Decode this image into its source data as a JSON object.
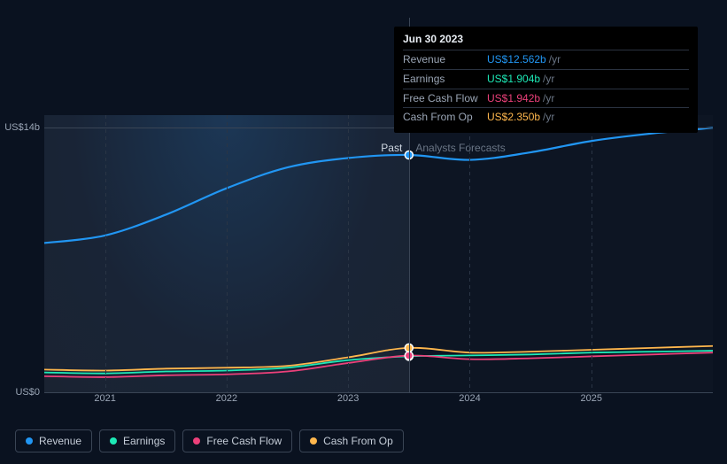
{
  "chart": {
    "type": "line",
    "background_past": "#1a2332",
    "background_forecast": "#0d1523",
    "grid_color": "#3a4555",
    "text_color": "#9aa5b5",
    "past_label": "Past",
    "forecast_label": "Analysts Forecasts",
    "y_axis": {
      "ticks": [
        {
          "value": 0,
          "label": "US$0"
        },
        {
          "value": 14,
          "label": "US$14b"
        }
      ],
      "ymin": 0,
      "ymax": 14.67
    },
    "x_axis": {
      "xmin": 2020.5,
      "xmax": 2026.0,
      "ticks": [
        2021,
        2022,
        2023,
        2024,
        2025
      ],
      "split_at": 2023.5
    },
    "series": [
      {
        "name": "Revenue",
        "legend": "Revenue",
        "color": "#2196f3",
        "points": [
          {
            "x": 2020.5,
            "y": 7.9
          },
          {
            "x": 2021.0,
            "y": 8.3
          },
          {
            "x": 2021.5,
            "y": 9.4
          },
          {
            "x": 2022.0,
            "y": 10.8
          },
          {
            "x": 2022.5,
            "y": 11.9
          },
          {
            "x": 2023.0,
            "y": 12.4
          },
          {
            "x": 2023.5,
            "y": 12.562
          },
          {
            "x": 2024.0,
            "y": 12.3
          },
          {
            "x": 2024.5,
            "y": 12.7
          },
          {
            "x": 2025.0,
            "y": 13.3
          },
          {
            "x": 2025.5,
            "y": 13.7
          },
          {
            "x": 2026.0,
            "y": 14.0
          }
        ]
      },
      {
        "name": "Earnings",
        "legend": "Earnings",
        "color": "#1de9b6",
        "points": [
          {
            "x": 2020.5,
            "y": 1.05
          },
          {
            "x": 2021.0,
            "y": 1.0
          },
          {
            "x": 2021.5,
            "y": 1.1
          },
          {
            "x": 2022.0,
            "y": 1.15
          },
          {
            "x": 2022.5,
            "y": 1.3
          },
          {
            "x": 2023.0,
            "y": 1.7
          },
          {
            "x": 2023.5,
            "y": 1.904
          },
          {
            "x": 2024.0,
            "y": 1.95
          },
          {
            "x": 2024.5,
            "y": 2.0
          },
          {
            "x": 2025.0,
            "y": 2.1
          },
          {
            "x": 2025.5,
            "y": 2.15
          },
          {
            "x": 2026.0,
            "y": 2.2
          }
        ]
      },
      {
        "name": "Free Cash Flow",
        "legend": "Free Cash Flow",
        "color": "#ec407a",
        "points": [
          {
            "x": 2020.5,
            "y": 0.85
          },
          {
            "x": 2021.0,
            "y": 0.8
          },
          {
            "x": 2021.5,
            "y": 0.9
          },
          {
            "x": 2022.0,
            "y": 0.95
          },
          {
            "x": 2022.5,
            "y": 1.1
          },
          {
            "x": 2023.0,
            "y": 1.55
          },
          {
            "x": 2023.5,
            "y": 1.942
          },
          {
            "x": 2024.0,
            "y": 1.75
          },
          {
            "x": 2024.5,
            "y": 1.8
          },
          {
            "x": 2025.0,
            "y": 1.9
          },
          {
            "x": 2025.5,
            "y": 2.0
          },
          {
            "x": 2026.0,
            "y": 2.1
          }
        ]
      },
      {
        "name": "Cash From Op",
        "legend": "Cash From Op",
        "color": "#ffb74d",
        "points": [
          {
            "x": 2020.5,
            "y": 1.2
          },
          {
            "x": 2021.0,
            "y": 1.15
          },
          {
            "x": 2021.5,
            "y": 1.25
          },
          {
            "x": 2022.0,
            "y": 1.3
          },
          {
            "x": 2022.5,
            "y": 1.4
          },
          {
            "x": 2023.0,
            "y": 1.85
          },
          {
            "x": 2023.5,
            "y": 2.35
          },
          {
            "x": 2024.0,
            "y": 2.1
          },
          {
            "x": 2024.5,
            "y": 2.15
          },
          {
            "x": 2025.0,
            "y": 2.25
          },
          {
            "x": 2025.5,
            "y": 2.35
          },
          {
            "x": 2026.0,
            "y": 2.45
          }
        ]
      }
    ],
    "marker_x": 2023.5
  },
  "tooltip": {
    "title": "Jun 30 2023",
    "unit": "/yr",
    "rows": [
      {
        "label": "Revenue",
        "value": "US$12.562b",
        "color": "#2196f3"
      },
      {
        "label": "Earnings",
        "value": "US$1.904b",
        "color": "#1de9b6"
      },
      {
        "label": "Free Cash Flow",
        "value": "US$1.942b",
        "color": "#ec407a"
      },
      {
        "label": "Cash From Op",
        "value": "US$2.350b",
        "color": "#ffb74d"
      }
    ]
  }
}
